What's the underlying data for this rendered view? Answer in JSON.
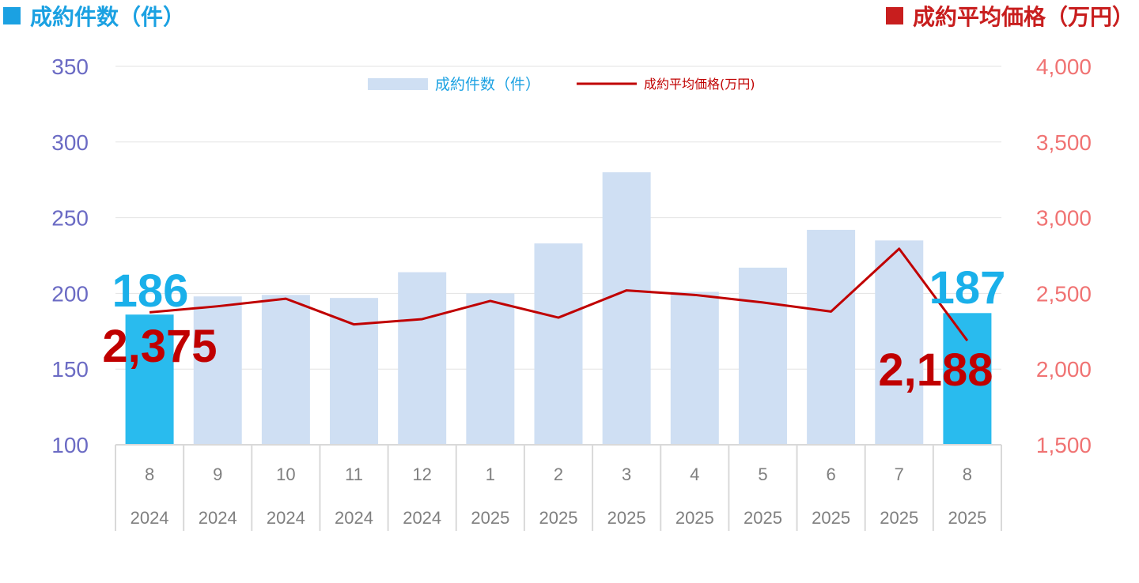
{
  "header": {
    "left_title": "成約件数（件）",
    "right_title": "成約平均価格（万円）",
    "left_color": "#1ba1e2",
    "right_color": "#c81e1e"
  },
  "chart_data": {
    "type": "bar",
    "categories": [
      {
        "month": "8",
        "year": "2024"
      },
      {
        "month": "9",
        "year": "2024"
      },
      {
        "month": "10",
        "year": "2024"
      },
      {
        "month": "11",
        "year": "2024"
      },
      {
        "month": "12",
        "year": "2024"
      },
      {
        "month": "1",
        "year": "2025"
      },
      {
        "month": "2",
        "year": "2025"
      },
      {
        "month": "3",
        "year": "2025"
      },
      {
        "month": "4",
        "year": "2025"
      },
      {
        "month": "5",
        "year": "2025"
      },
      {
        "month": "6",
        "year": "2025"
      },
      {
        "month": "7",
        "year": "2025"
      },
      {
        "month": "8",
        "year": "2025"
      }
    ],
    "series": [
      {
        "name": "成約件数（件）",
        "type": "bar",
        "axis": "left",
        "values": [
          186,
          198,
          199,
          197,
          214,
          200,
          233,
          280,
          201,
          217,
          242,
          235,
          187
        ],
        "color": "#cfdff3",
        "highlight_color": "#29bbee",
        "highlight_indices": [
          0,
          12
        ]
      },
      {
        "name": "成約平均価格(万円)",
        "type": "line",
        "axis": "right",
        "values": [
          2375,
          2415,
          2465,
          2295,
          2330,
          2450,
          2340,
          2520,
          2490,
          2440,
          2380,
          2795,
          2188
        ],
        "color": "#c00000"
      }
    ],
    "y_left": {
      "min": 100,
      "max": 350,
      "ticks": [
        "100",
        "150",
        "200",
        "250",
        "300",
        "350"
      ],
      "color": "#6b6bc4"
    },
    "y_right": {
      "min": 1500,
      "max": 4000,
      "ticks": [
        "1,500",
        "2,000",
        "2,500",
        "3,000",
        "3,500",
        "4,000"
      ],
      "color": "#f07373"
    },
    "annotations": [
      {
        "text": "186",
        "series": 0,
        "index": 0
      },
      {
        "text": "187",
        "series": 0,
        "index": 12
      },
      {
        "text": "2,375",
        "series": 1,
        "index": 0
      },
      {
        "text": "2,188",
        "series": 1,
        "index": 12
      }
    ],
    "legend": {
      "placement": "top-center"
    },
    "grid": true
  }
}
